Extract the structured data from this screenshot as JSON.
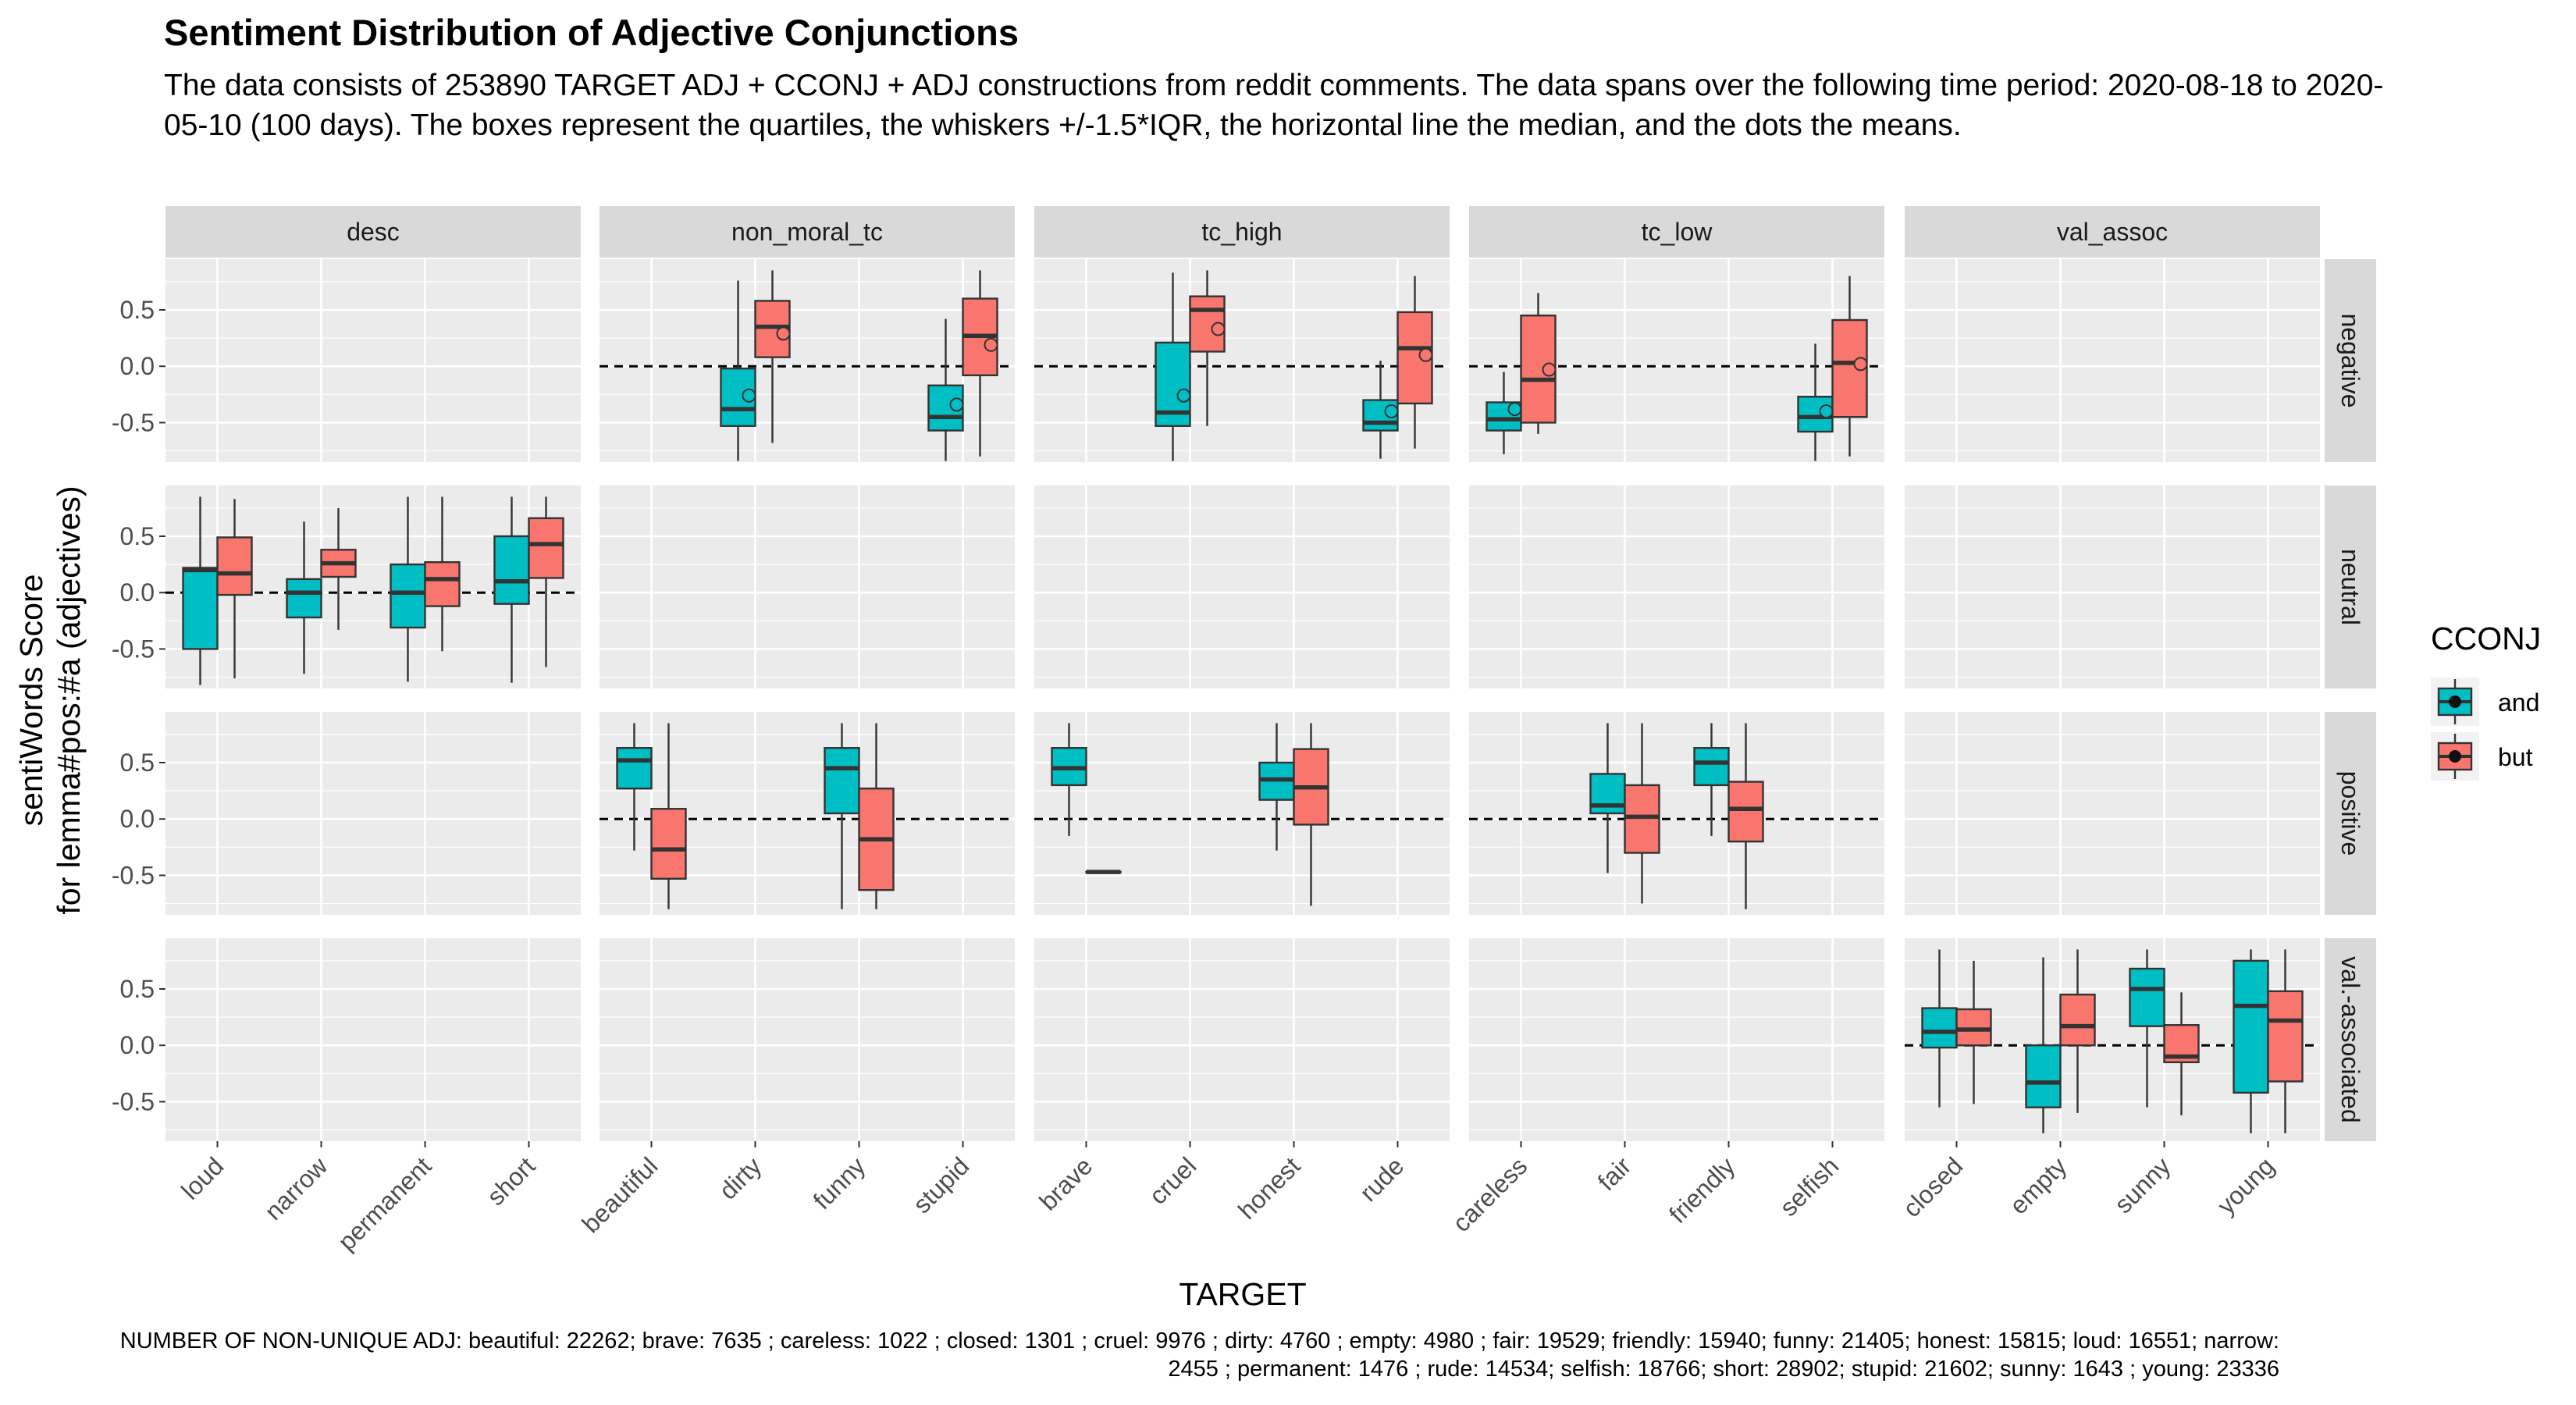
{
  "title": "Sentiment Distribution of Adjective Conjunctions",
  "subtitle": "The data consists of 253890 TARGET ADJ + CCONJ + ADJ constructions from reddit comments. The data spans over the following time period: 2020-08-18 to 2020-05-10 (100 days). The boxes represent the quartiles, the whiskers +/-1.5*IQR, the horizontal line the median, and the dots the means.",
  "caption": "NUMBER OF NON-UNIQUE ADJ: beautiful: 22262; brave: 7635 ; careless: 1022 ; closed: 1301 ; cruel: 9976 ; dirty: 4760 ; empty: 4980 ; fair: 19529; friendly: 15940; funny: 21405; honest: 15815; loud: 16551; narrow: 2455 ; permanent: 1476 ; rude: 14534; selfish: 18766; short: 28902; stupid: 21602; sunny: 1643 ; young: 23336",
  "colors": {
    "and": "#00BFC4",
    "but": "#F8766D",
    "panel": "#EBEBEB",
    "strip": "#D9D9D9"
  },
  "chart_data": {
    "type": "boxplot",
    "xlabel": "TARGET",
    "ylabel_lines": [
      "sentiWords Score",
      "for lemma#pos:#a (adjectives)"
    ],
    "ylim": [
      -0.85,
      0.95
    ],
    "yticks": [
      -0.5,
      0.0,
      0.5
    ],
    "ytick_labels": [
      "-0.5",
      "0.0",
      "0.5"
    ],
    "reference_line": 0,
    "columns": [
      "desc",
      "non_moral_tc",
      "tc_high",
      "tc_low",
      "val_assoc"
    ],
    "rows": [
      "negative",
      "neutral",
      "positive",
      "val.-associated"
    ],
    "column_targets": {
      "desc": [
        "loud",
        "narrow",
        "permanent",
        "short"
      ],
      "non_moral_tc": [
        "beautiful",
        "dirty",
        "funny",
        "stupid"
      ],
      "tc_high": [
        "brave",
        "cruel",
        "honest",
        "rude"
      ],
      "tc_low": [
        "careless",
        "fair",
        "friendly",
        "selfish"
      ],
      "val_assoc": [
        "closed",
        "empty",
        "sunny",
        "young"
      ]
    },
    "legend": {
      "title": "CCONJ",
      "entries": [
        "and",
        "but"
      ]
    },
    "boxes": [
      {
        "col": "desc",
        "row": "neutral",
        "target": "loud",
        "cconj": "and",
        "lw": -0.82,
        "q1": -0.5,
        "med": 0.2,
        "q3": 0.22,
        "uw": 0.85
      },
      {
        "col": "desc",
        "row": "neutral",
        "target": "loud",
        "cconj": "but",
        "lw": -0.76,
        "q1": -0.02,
        "med": 0.17,
        "q3": 0.49,
        "uw": 0.83
      },
      {
        "col": "desc",
        "row": "neutral",
        "target": "narrow",
        "cconj": "and",
        "lw": -0.72,
        "q1": -0.22,
        "med": 0.0,
        "q3": 0.12,
        "uw": 0.63
      },
      {
        "col": "desc",
        "row": "neutral",
        "target": "narrow",
        "cconj": "but",
        "lw": -0.33,
        "q1": 0.14,
        "med": 0.26,
        "q3": 0.38,
        "uw": 0.75
      },
      {
        "col": "desc",
        "row": "neutral",
        "target": "permanent",
        "cconj": "and",
        "lw": -0.79,
        "q1": -0.31,
        "med": 0.0,
        "q3": 0.25,
        "uw": 0.85
      },
      {
        "col": "desc",
        "row": "neutral",
        "target": "permanent",
        "cconj": "but",
        "lw": -0.52,
        "q1": -0.12,
        "med": 0.12,
        "q3": 0.27,
        "uw": 0.85
      },
      {
        "col": "desc",
        "row": "neutral",
        "target": "short",
        "cconj": "and",
        "lw": -0.8,
        "q1": -0.1,
        "med": 0.1,
        "q3": 0.5,
        "uw": 0.85
      },
      {
        "col": "desc",
        "row": "neutral",
        "target": "short",
        "cconj": "but",
        "lw": -0.66,
        "q1": 0.13,
        "med": 0.43,
        "q3": 0.66,
        "uw": 0.85
      },
      {
        "col": "non_moral_tc",
        "row": "negative",
        "target": "dirty",
        "cconj": "and",
        "lw": -0.84,
        "q1": -0.53,
        "med": -0.38,
        "q3": -0.02,
        "uw": 0.76,
        "mean": -0.26
      },
      {
        "col": "non_moral_tc",
        "row": "negative",
        "target": "dirty",
        "cconj": "but",
        "lw": -0.68,
        "q1": 0.08,
        "med": 0.35,
        "q3": 0.58,
        "uw": 0.85,
        "mean": 0.29
      },
      {
        "col": "non_moral_tc",
        "row": "negative",
        "target": "stupid",
        "cconj": "and",
        "lw": -0.84,
        "q1": -0.57,
        "med": -0.45,
        "q3": -0.17,
        "uw": 0.42,
        "mean": -0.34
      },
      {
        "col": "non_moral_tc",
        "row": "negative",
        "target": "stupid",
        "cconj": "but",
        "lw": -0.8,
        "q1": -0.08,
        "med": 0.27,
        "q3": 0.6,
        "uw": 0.85,
        "mean": 0.19
      },
      {
        "col": "non_moral_tc",
        "row": "positive",
        "target": "beautiful",
        "cconj": "and",
        "lw": -0.28,
        "q1": 0.27,
        "med": 0.52,
        "q3": 0.63,
        "uw": 0.85
      },
      {
        "col": "non_moral_tc",
        "row": "positive",
        "target": "beautiful",
        "cconj": "but",
        "lw": -0.8,
        "q1": -0.53,
        "med": -0.27,
        "q3": 0.09,
        "uw": 0.85
      },
      {
        "col": "non_moral_tc",
        "row": "positive",
        "target": "funny",
        "cconj": "and",
        "lw": -0.8,
        "q1": 0.05,
        "med": 0.45,
        "q3": 0.63,
        "uw": 0.85
      },
      {
        "col": "non_moral_tc",
        "row": "positive",
        "target": "funny",
        "cconj": "but",
        "lw": -0.8,
        "q1": -0.63,
        "med": -0.18,
        "q3": 0.27,
        "uw": 0.85
      },
      {
        "col": "tc_high",
        "row": "negative",
        "target": "cruel",
        "cconj": "and",
        "lw": -0.84,
        "q1": -0.53,
        "med": -0.41,
        "q3": 0.21,
        "uw": 0.83,
        "mean": -0.26
      },
      {
        "col": "tc_high",
        "row": "negative",
        "target": "cruel",
        "cconj": "but",
        "lw": -0.53,
        "q1": 0.13,
        "med": 0.5,
        "q3": 0.62,
        "uw": 0.85,
        "mean": 0.33
      },
      {
        "col": "tc_high",
        "row": "negative",
        "target": "rude",
        "cconj": "and",
        "lw": -0.82,
        "q1": -0.57,
        "med": -0.5,
        "q3": -0.3,
        "uw": 0.05,
        "mean": -0.4
      },
      {
        "col": "tc_high",
        "row": "negative",
        "target": "rude",
        "cconj": "but",
        "lw": -0.73,
        "q1": -0.33,
        "med": 0.16,
        "q3": 0.48,
        "uw": 0.8,
        "mean": 0.1
      },
      {
        "col": "tc_high",
        "row": "positive",
        "target": "brave",
        "cconj": "and",
        "lw": -0.15,
        "q1": 0.3,
        "med": 0.45,
        "q3": 0.63,
        "uw": 0.85
      },
      {
        "col": "tc_high",
        "row": "positive",
        "target": "brave",
        "cconj": "but",
        "lw": -0.47,
        "q1": -0.47,
        "med": -0.47,
        "q3": -0.47,
        "uw": -0.47
      },
      {
        "col": "tc_high",
        "row": "positive",
        "target": "honest",
        "cconj": "and",
        "lw": -0.28,
        "q1": 0.17,
        "med": 0.35,
        "q3": 0.5,
        "uw": 0.85
      },
      {
        "col": "tc_high",
        "row": "positive",
        "target": "honest",
        "cconj": "but",
        "lw": -0.77,
        "q1": -0.05,
        "med": 0.28,
        "q3": 0.62,
        "uw": 0.85
      },
      {
        "col": "tc_low",
        "row": "negative",
        "target": "careless",
        "cconj": "and",
        "lw": -0.78,
        "q1": -0.57,
        "med": -0.47,
        "q3": -0.32,
        "uw": -0.05,
        "mean": -0.38
      },
      {
        "col": "tc_low",
        "row": "negative",
        "target": "careless",
        "cconj": "but",
        "lw": -0.6,
        "q1": -0.5,
        "med": -0.12,
        "q3": 0.45,
        "uw": 0.65,
        "mean": -0.03
      },
      {
        "col": "tc_low",
        "row": "negative",
        "target": "selfish",
        "cconj": "and",
        "lw": -0.84,
        "q1": -0.58,
        "med": -0.45,
        "q3": -0.27,
        "uw": 0.2,
        "mean": -0.4
      },
      {
        "col": "tc_low",
        "row": "negative",
        "target": "selfish",
        "cconj": "but",
        "lw": -0.8,
        "q1": -0.45,
        "med": 0.03,
        "q3": 0.41,
        "uw": 0.8,
        "mean": 0.02
      },
      {
        "col": "tc_low",
        "row": "positive",
        "target": "fair",
        "cconj": "and",
        "lw": -0.48,
        "q1": 0.05,
        "med": 0.12,
        "q3": 0.4,
        "uw": 0.85
      },
      {
        "col": "tc_low",
        "row": "positive",
        "target": "fair",
        "cconj": "but",
        "lw": -0.75,
        "q1": -0.3,
        "med": 0.02,
        "q3": 0.3,
        "uw": 0.85
      },
      {
        "col": "tc_low",
        "row": "positive",
        "target": "friendly",
        "cconj": "and",
        "lw": -0.15,
        "q1": 0.3,
        "med": 0.5,
        "q3": 0.63,
        "uw": 0.85
      },
      {
        "col": "tc_low",
        "row": "positive",
        "target": "friendly",
        "cconj": "but",
        "lw": -0.8,
        "q1": -0.2,
        "med": 0.09,
        "q3": 0.33,
        "uw": 0.85
      },
      {
        "col": "val_assoc",
        "row": "val.-associated",
        "target": "closed",
        "cconj": "and",
        "lw": -0.55,
        "q1": -0.02,
        "med": 0.12,
        "q3": 0.33,
        "uw": 0.85
      },
      {
        "col": "val_assoc",
        "row": "val.-associated",
        "target": "closed",
        "cconj": "but",
        "lw": -0.52,
        "q1": 0.0,
        "med": 0.14,
        "q3": 0.32,
        "uw": 0.75
      },
      {
        "col": "val_assoc",
        "row": "val.-associated",
        "target": "empty",
        "cconj": "and",
        "lw": -0.78,
        "q1": -0.55,
        "med": -0.33,
        "q3": 0.0,
        "uw": 0.78
      },
      {
        "col": "val_assoc",
        "row": "val.-associated",
        "target": "empty",
        "cconj": "but",
        "lw": -0.6,
        "q1": 0.0,
        "med": 0.17,
        "q3": 0.45,
        "uw": 0.85
      },
      {
        "col": "val_assoc",
        "row": "val.-associated",
        "target": "sunny",
        "cconj": "and",
        "lw": -0.55,
        "q1": 0.17,
        "med": 0.5,
        "q3": 0.68,
        "uw": 0.85
      },
      {
        "col": "val_assoc",
        "row": "val.-associated",
        "target": "sunny",
        "cconj": "but",
        "lw": -0.62,
        "q1": -0.15,
        "med": -0.1,
        "q3": 0.18,
        "uw": 0.47
      },
      {
        "col": "val_assoc",
        "row": "val.-associated",
        "target": "young",
        "cconj": "and",
        "lw": -0.78,
        "q1": -0.42,
        "med": 0.35,
        "q3": 0.75,
        "uw": 0.85
      },
      {
        "col": "val_assoc",
        "row": "val.-associated",
        "target": "young",
        "cconj": "but",
        "lw": -0.78,
        "q1": -0.32,
        "med": 0.22,
        "q3": 0.48,
        "uw": 0.85
      }
    ]
  }
}
